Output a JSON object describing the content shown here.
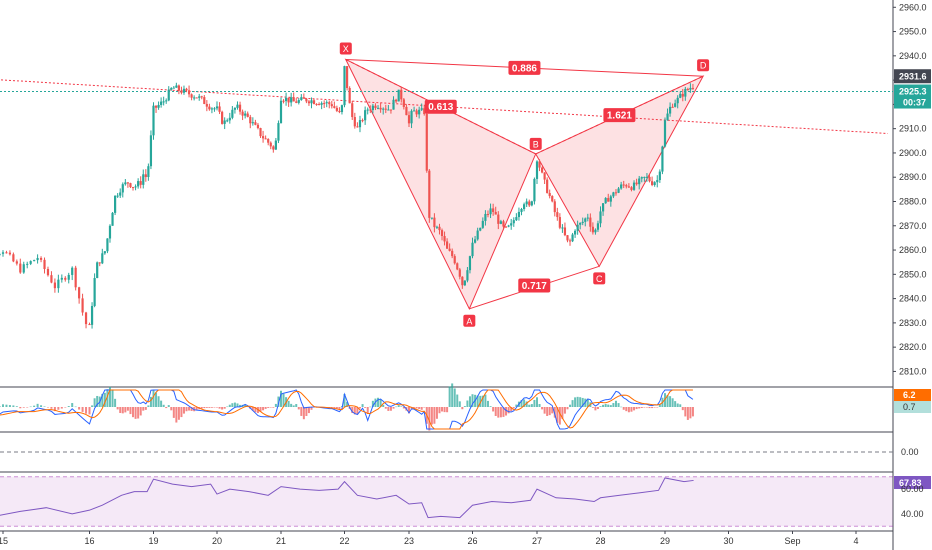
{
  "chart_data": {
    "type": "candlestick",
    "price_axis": {
      "ticks": [
        2960.0,
        2950.0,
        2940.0,
        2930.0,
        2920.0,
        2910.0,
        2900.0,
        2890.0,
        2880.0,
        2870.0,
        2860.0,
        2850.0,
        2840.0,
        2830.0,
        2820.0,
        2810.0
      ],
      "ylim": [
        2804,
        2963
      ],
      "tag_high": "2931.6",
      "tag_last": "2925.3",
      "tag_time": "00:37"
    },
    "date_axis": {
      "ticks": [
        {
          "label": "15",
          "day": 0
        },
        {
          "label": "16",
          "day": 1
        },
        {
          "label": "19",
          "day": 2
        },
        {
          "label": "20",
          "day": 3
        },
        {
          "label": "21",
          "day": 4
        },
        {
          "label": "22",
          "day": 5
        },
        {
          "label": "23",
          "day": 6
        },
        {
          "label": "26",
          "day": 7
        },
        {
          "label": "27",
          "day": 8
        },
        {
          "label": "28",
          "day": 9
        },
        {
          "label": "29",
          "day": 10
        },
        {
          "label": "30",
          "day": 11
        },
        {
          "label": "Sep",
          "day": 12
        },
        {
          "label": "4",
          "day": 13
        }
      ]
    },
    "price_path": [
      [
        -0.4,
        2868
      ],
      [
        -0.2,
        2858
      ],
      [
        0,
        2860
      ],
      [
        0.2,
        2852
      ],
      [
        0.4,
        2857
      ],
      [
        0.6,
        2845
      ],
      [
        0.8,
        2852
      ],
      [
        0.95,
        2830
      ],
      [
        1.0,
        2828
      ],
      [
        1.1,
        2853
      ],
      [
        1.25,
        2860
      ],
      [
        1.3,
        2868
      ],
      [
        1.4,
        2882
      ],
      [
        1.5,
        2886
      ],
      [
        1.6,
        2888
      ],
      [
        1.7,
        2886
      ],
      [
        1.8,
        2888
      ],
      [
        1.85,
        2892
      ],
      [
        1.9,
        2889
      ],
      [
        2.0,
        2918
      ],
      [
        2.15,
        2921
      ],
      [
        2.3,
        2927
      ],
      [
        2.5,
        2925
      ],
      [
        2.7,
        2923
      ],
      [
        2.9,
        2919
      ],
      [
        3.0,
        2918
      ],
      [
        3.1,
        2912
      ],
      [
        3.3,
        2919
      ],
      [
        3.5,
        2914
      ],
      [
        3.7,
        2907
      ],
      [
        3.85,
        2903
      ],
      [
        3.9,
        2900
      ],
      [
        4.0,
        2923
      ],
      [
        4.2,
        2921
      ],
      [
        4.4,
        2922
      ],
      [
        4.6,
        2921
      ],
      [
        4.8,
        2920
      ],
      [
        4.95,
        2915
      ],
      [
        5.0,
        2935
      ],
      [
        5.1,
        2916
      ],
      [
        5.2,
        2910
      ],
      [
        5.35,
        2918
      ],
      [
        5.5,
        2920
      ],
      [
        5.7,
        2918
      ],
      [
        5.85,
        2925
      ],
      [
        5.95,
        2918
      ],
      [
        6.0,
        2912
      ],
      [
        6.05,
        2917
      ],
      [
        6.25,
        2917
      ],
      [
        6.3,
        2875
      ],
      [
        6.4,
        2870
      ],
      [
        6.5,
        2867
      ],
      [
        6.6,
        2860
      ],
      [
        6.7,
        2857
      ],
      [
        6.8,
        2850
      ],
      [
        6.85,
        2845
      ],
      [
        7.0,
        2862
      ],
      [
        7.1,
        2868
      ],
      [
        7.2,
        2874
      ],
      [
        7.3,
        2877
      ],
      [
        7.4,
        2872
      ],
      [
        7.5,
        2868
      ],
      [
        7.6,
        2870
      ],
      [
        7.7,
        2876
      ],
      [
        7.8,
        2880
      ],
      [
        7.9,
        2877
      ],
      [
        8.0,
        2898
      ],
      [
        8.1,
        2889
      ],
      [
        8.2,
        2882
      ],
      [
        8.3,
        2874
      ],
      [
        8.4,
        2868
      ],
      [
        8.5,
        2862
      ],
      [
        8.6,
        2869
      ],
      [
        8.7,
        2871
      ],
      [
        8.8,
        2874
      ],
      [
        8.9,
        2866
      ],
      [
        9.0,
        2876
      ],
      [
        9.1,
        2881
      ],
      [
        9.2,
        2883
      ],
      [
        9.3,
        2886
      ],
      [
        9.4,
        2887
      ],
      [
        9.5,
        2886
      ],
      [
        9.6,
        2888
      ],
      [
        9.7,
        2890
      ],
      [
        9.8,
        2888
      ],
      [
        9.9,
        2889
      ],
      [
        10.0,
        2913
      ],
      [
        10.1,
        2920
      ],
      [
        10.2,
        2922
      ],
      [
        10.3,
        2925
      ],
      [
        10.4,
        2927
      ],
      [
        10.45,
        2928
      ]
    ],
    "harmonic_pattern": {
      "points": [
        {
          "label": "X",
          "day": 5.02,
          "price": 2938.5
        },
        {
          "label": "A",
          "day": 6.95,
          "price": 2835.8
        },
        {
          "label": "B",
          "day": 7.98,
          "price": 2899.6
        },
        {
          "label": "C",
          "day": 8.98,
          "price": 2853.3
        },
        {
          "label": "D",
          "day": 10.6,
          "price": 2931.6
        }
      ],
      "ratios": [
        "0.613",
        "0.717",
        "1.621",
        "0.886"
      ]
    },
    "trendline": {
      "from": [
        -0.9,
        2932
      ],
      "to": [
        13.5,
        2908
      ]
    },
    "last_price": 2925.3,
    "macd": {
      "tag_a": "6.2",
      "tag_b": "0.7"
    },
    "zero_pane": {
      "tag": "0.00"
    },
    "rsi": {
      "tag": "67.83",
      "ticks": [
        "60.00",
        "40.00"
      ],
      "path": [
        [
          -0.4,
          40
        ],
        [
          -0.1,
          38
        ],
        [
          0.2,
          42
        ],
        [
          0.5,
          45
        ],
        [
          0.8,
          40
        ],
        [
          1.0,
          43
        ],
        [
          1.2,
          47
        ],
        [
          1.5,
          55
        ],
        [
          1.7,
          58
        ],
        [
          1.9,
          58
        ],
        [
          2.0,
          68
        ],
        [
          2.3,
          64
        ],
        [
          2.6,
          62
        ],
        [
          2.9,
          64
        ],
        [
          3.0,
          56
        ],
        [
          3.2,
          60
        ],
        [
          3.5,
          58
        ],
        [
          3.8,
          55
        ],
        [
          4.0,
          62
        ],
        [
          4.3,
          60
        ],
        [
          4.6,
          59
        ],
        [
          4.9,
          60
        ],
        [
          5.0,
          66
        ],
        [
          5.2,
          55
        ],
        [
          5.5,
          52
        ],
        [
          5.8,
          55
        ],
        [
          6.0,
          48
        ],
        [
          6.2,
          49
        ],
        [
          6.3,
          37
        ],
        [
          6.5,
          38
        ],
        [
          6.8,
          37
        ],
        [
          7.0,
          47
        ],
        [
          7.3,
          50
        ],
        [
          7.6,
          49
        ],
        [
          7.9,
          51
        ],
        [
          8.0,
          60
        ],
        [
          8.3,
          53
        ],
        [
          8.6,
          52
        ],
        [
          8.9,
          50
        ],
        [
          9.0,
          53
        ],
        [
          9.3,
          55
        ],
        [
          9.6,
          57
        ],
        [
          9.9,
          59
        ],
        [
          10.0,
          69
        ],
        [
          10.3,
          66
        ],
        [
          10.45,
          67
        ]
      ]
    }
  }
}
